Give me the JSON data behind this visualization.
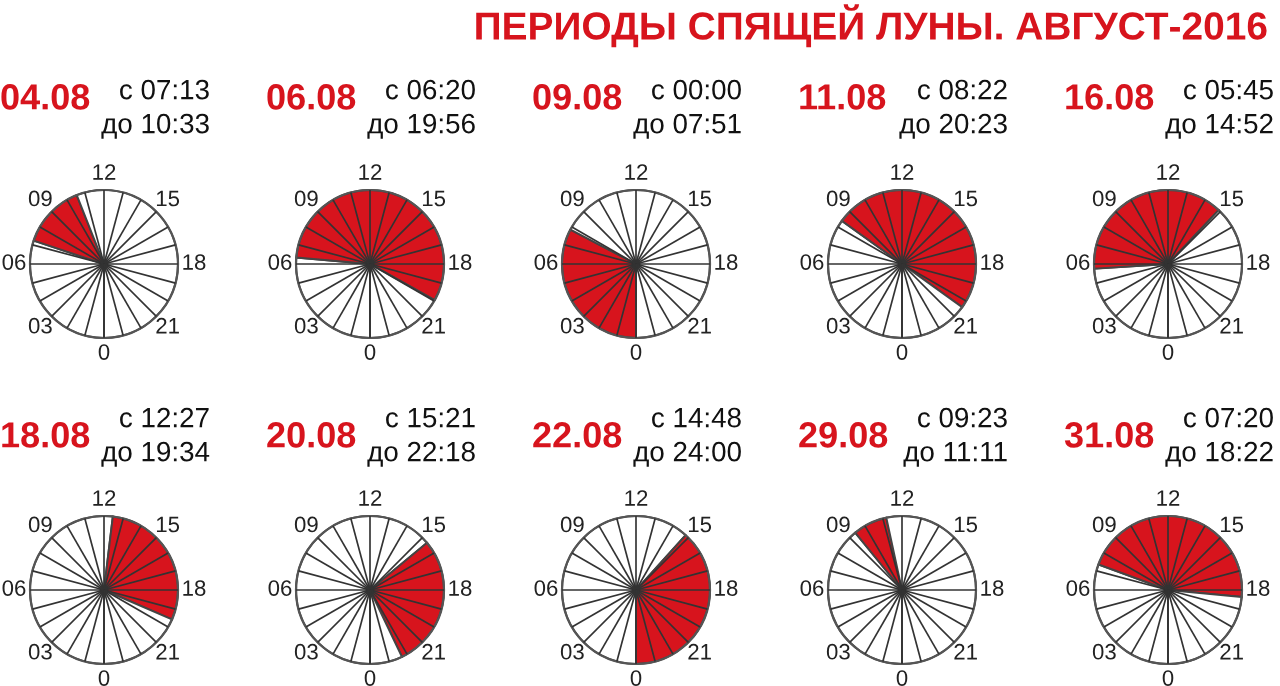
{
  "chart_data": [
    {
      "type": "other",
      "title": "ПЕРИОДЫ СПЯЩЕЙ ЛУНЫ. АВГУСТ-2016"
    },
    {
      "type": "pie",
      "title": "04.08",
      "annotations": [
        "с 07:13",
        "до 10:33",
        "0",
        "03",
        "06",
        "09",
        "12",
        "15",
        "18",
        "21"
      ],
      "categories": [
        null,
        null,
        null
      ],
      "values": [
        30.1,
        13.9,
        56.0
      ],
      "colors": [
        "#ffffff",
        "#d7141d",
        "#ffffff"
      ]
    },
    {
      "type": "pie",
      "title": "06.08",
      "annotations": [
        "с 06:20",
        "до 19:56",
        "0",
        "03",
        "06",
        "09",
        "12",
        "15",
        "18",
        "21"
      ],
      "categories": [
        null,
        null,
        null
      ],
      "values": [
        26.4,
        56.7,
        16.9
      ],
      "colors": [
        "#ffffff",
        "#d7141d",
        "#ffffff"
      ]
    },
    {
      "type": "pie",
      "title": "09.08",
      "annotations": [
        "с 00:00",
        "до 07:51",
        "0",
        "03",
        "06",
        "09",
        "12",
        "15",
        "18",
        "21"
      ],
      "categories": [
        null,
        null
      ],
      "values": [
        32.7,
        67.3
      ],
      "colors": [
        "#d7141d",
        "#ffffff"
      ]
    },
    {
      "type": "pie",
      "title": "11.08",
      "annotations": [
        "с 08:22",
        "до 20:23",
        "0",
        "03",
        "06",
        "09",
        "12",
        "15",
        "18",
        "21"
      ],
      "categories": [
        null,
        null,
        null
      ],
      "values": [
        34.9,
        50.0,
        15.1
      ],
      "colors": [
        "#ffffff",
        "#d7141d",
        "#ffffff"
      ]
    },
    {
      "type": "pie",
      "title": "16.08",
      "annotations": [
        "с 05:45",
        "до 14:52",
        "0",
        "03",
        "06",
        "09",
        "12",
        "15",
        "18",
        "21"
      ],
      "categories": [
        null,
        null,
        null
      ],
      "values": [
        24.0,
        38.0,
        38.0
      ],
      "colors": [
        "#ffffff",
        "#d7141d",
        "#ffffff"
      ]
    },
    {
      "type": "pie",
      "title": "18.08",
      "annotations": [
        "с 12:27",
        "до 19:34",
        "0",
        "03",
        "06",
        "09",
        "12",
        "15",
        "18",
        "21"
      ],
      "categories": [
        null,
        null,
        null
      ],
      "values": [
        51.9,
        29.6,
        18.5
      ],
      "colors": [
        "#ffffff",
        "#d7141d",
        "#ffffff"
      ]
    },
    {
      "type": "pie",
      "title": "20.08",
      "annotations": [
        "с 15:21",
        "до 22:18",
        "0",
        "03",
        "06",
        "09",
        "12",
        "15",
        "18",
        "21"
      ],
      "categories": [
        null,
        null,
        null
      ],
      "values": [
        64.0,
        28.9,
        7.1
      ],
      "colors": [
        "#ffffff",
        "#d7141d",
        "#ffffff"
      ]
    },
    {
      "type": "pie",
      "title": "22.08",
      "annotations": [
        "с 14:48",
        "до 24:00",
        "0",
        "03",
        "06",
        "09",
        "12",
        "15",
        "18",
        "21"
      ],
      "categories": [
        null,
        null
      ],
      "values": [
        61.7,
        38.3
      ],
      "colors": [
        "#ffffff",
        "#d7141d"
      ]
    },
    {
      "type": "pie",
      "title": "29.08",
      "annotations": [
        "с 09:23",
        "до 11:11",
        "0",
        "03",
        "06",
        "09",
        "12",
        "15",
        "18",
        "21"
      ],
      "categories": [
        null,
        null,
        null
      ],
      "values": [
        39.1,
        7.5,
        53.4
      ],
      "colors": [
        "#ffffff",
        "#d7141d",
        "#ffffff"
      ]
    },
    {
      "type": "pie",
      "title": "31.08",
      "annotations": [
        "с 07:20",
        "до 18:22",
        "0",
        "03",
        "06",
        "09",
        "12",
        "15",
        "18",
        "21"
      ],
      "categories": [
        null,
        null,
        null
      ],
      "values": [
        30.6,
        45.9,
        23.5
      ],
      "colors": [
        "#ffffff",
        "#d7141d",
        "#ffffff"
      ]
    }
  ]
}
